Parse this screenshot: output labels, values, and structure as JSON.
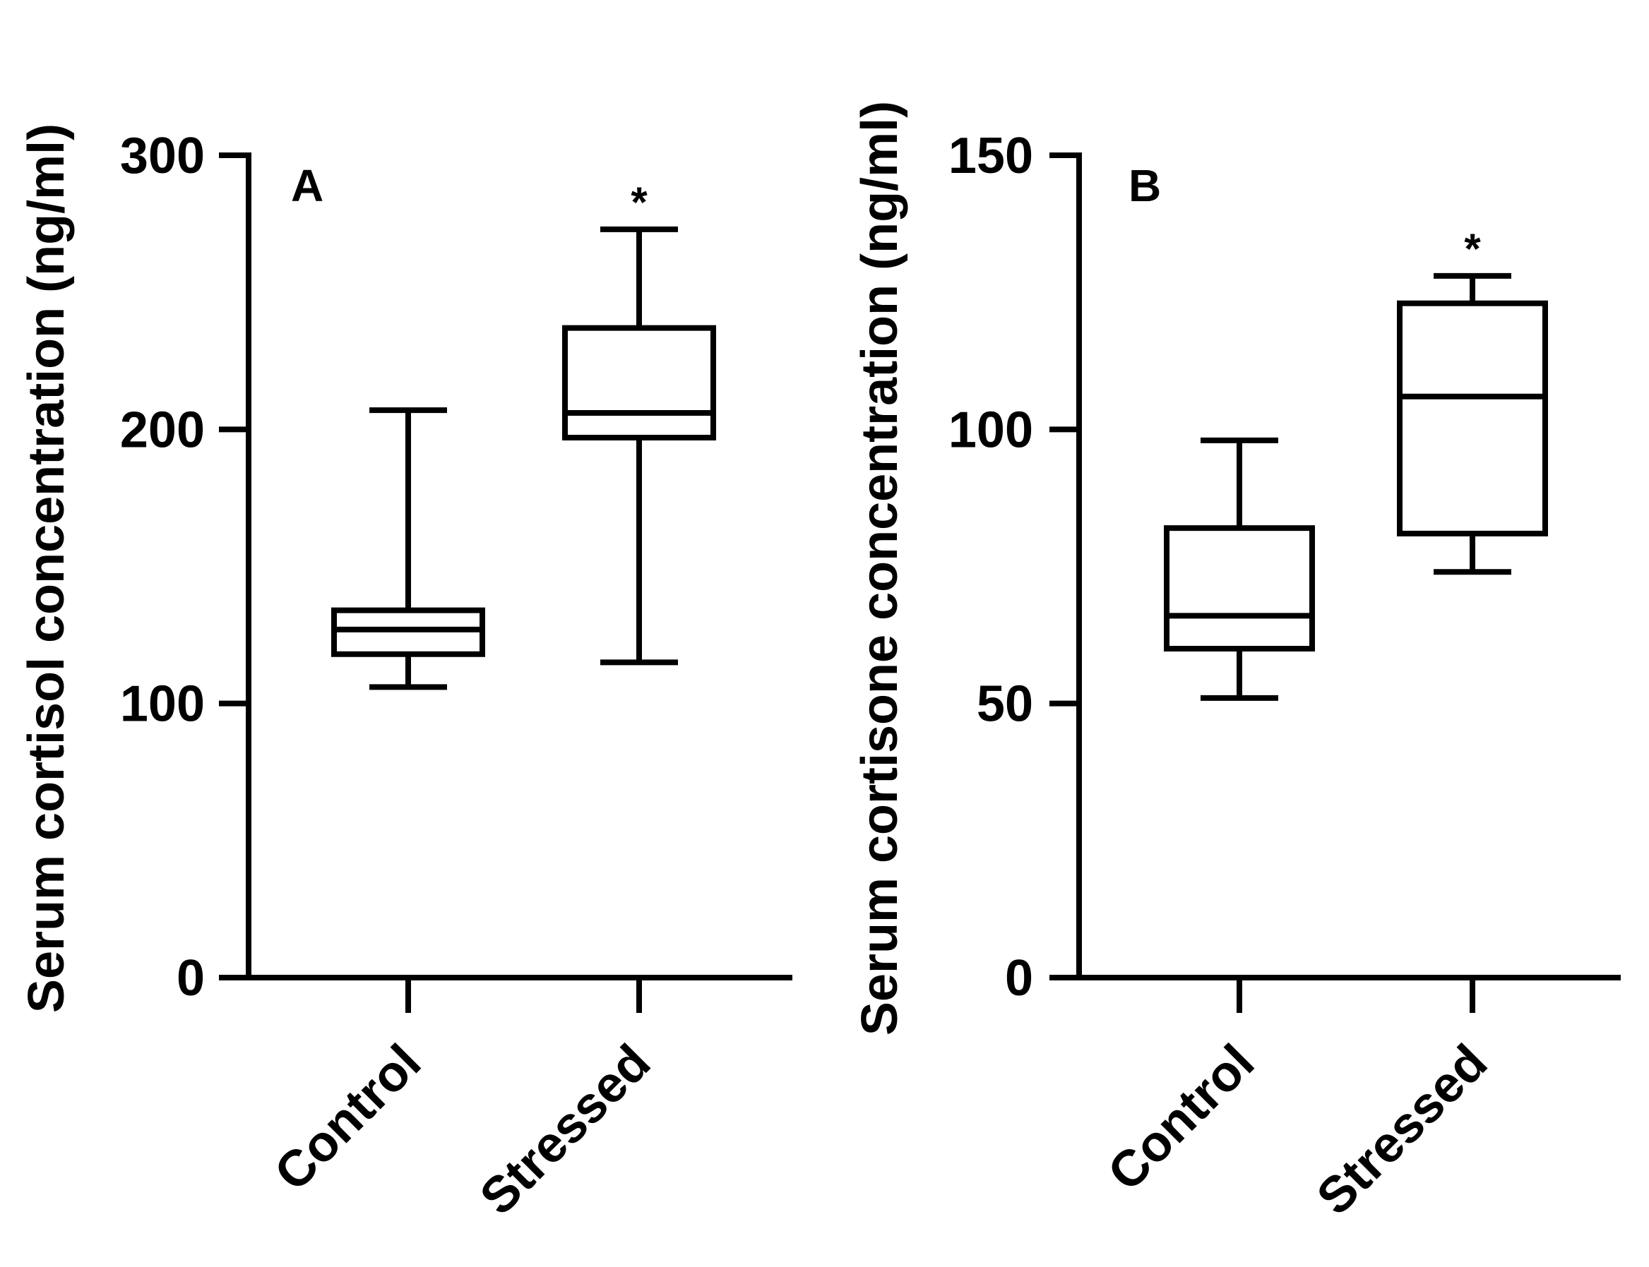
{
  "chart_data": [
    {
      "type": "box",
      "panel_label": "A",
      "ylabel": "Serum cortisol concentration (ng/ml)",
      "xlabel": "",
      "categories": [
        "Control",
        "Stressed"
      ],
      "ylim": [
        0,
        300
      ],
      "yticks": [
        0,
        100,
        200,
        300
      ],
      "ytick_labels": [
        "0",
        "100",
        "200",
        "300"
      ],
      "grid": false,
      "legend": "none",
      "boxes": [
        {
          "name": "Control",
          "min": 106,
          "q1": 118,
          "median": 127,
          "q3": 134,
          "max": 207,
          "annotation": ""
        },
        {
          "name": "Stressed",
          "min": 115,
          "q1": 197,
          "median": 206,
          "q3": 237,
          "max": 273,
          "annotation": "*"
        }
      ]
    },
    {
      "type": "box",
      "panel_label": "B",
      "ylabel": "Serum cortisone concentration (ng/ml)",
      "xlabel": "",
      "categories": [
        "Control",
        "Stressed"
      ],
      "ylim": [
        0,
        150
      ],
      "yticks": [
        0,
        50,
        100,
        150
      ],
      "ytick_labels": [
        "0",
        "50",
        "100",
        "150"
      ],
      "grid": false,
      "legend": "none",
      "boxes": [
        {
          "name": "Control",
          "min": 51,
          "q1": 60,
          "median": 66,
          "q3": 82,
          "max": 98,
          "annotation": ""
        },
        {
          "name": "Stressed",
          "min": 74,
          "q1": 81,
          "median": 106,
          "q3": 123,
          "max": 128,
          "annotation": "*"
        }
      ]
    }
  ]
}
